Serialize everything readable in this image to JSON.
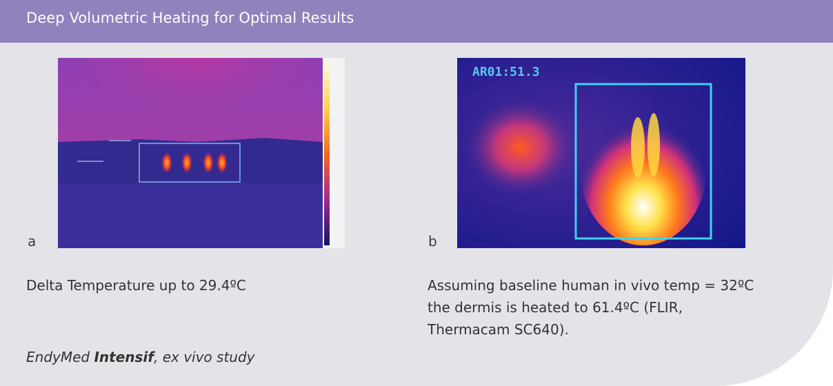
{
  "header": {
    "title": "Deep Volumetric Heating for Optimal Results"
  },
  "figure_a": {
    "label": "a",
    "caption": "Delta Temperature up to 29.4ºC",
    "colors": {
      "background": "#2a2a8c",
      "tissue_top": "#9a3aa8",
      "hotspot": "#ff4a1a"
    }
  },
  "figure_b": {
    "label": "b",
    "overlay_text": "AR01:51.3",
    "caption_lines": [
      "Assuming baseline human in vivo temp = 32ºC",
      "the dermis is heated to 61.4ºC (FLIR,",
      "Thermacam SC640)."
    ],
    "colors": {
      "background": "#1b1f8e",
      "roi_box": "#3fd3ee",
      "hotspot": "#ffffff"
    }
  },
  "footer": {
    "brand": "EndyMed",
    "product": "Intensif",
    "study": ", ex vivo study"
  }
}
